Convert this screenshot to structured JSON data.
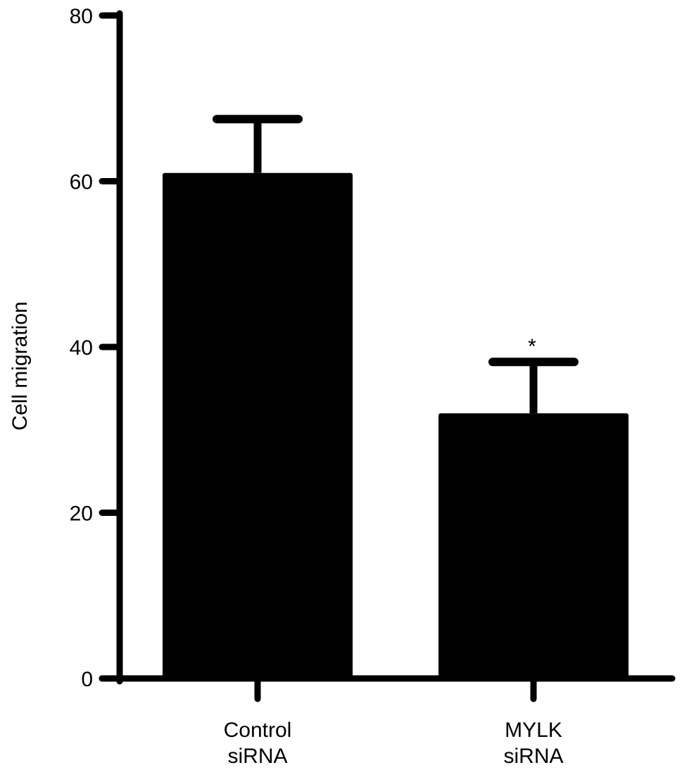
{
  "chart_data": {
    "type": "bar",
    "categories": [
      [
        "Control",
        "siRNA"
      ],
      [
        "MYLK",
        "siRNA"
      ]
    ],
    "values": [
      61,
      32
    ],
    "errors": [
      6.5,
      6.2
    ],
    "significance": [
      "",
      "*"
    ],
    "title": "",
    "xlabel": "",
    "ylabel": "Cell migration",
    "ylim": [
      0,
      80
    ],
    "yticks": [
      0,
      20,
      40,
      60,
      80
    ],
    "grid": false,
    "legend": "none",
    "colors": {
      "bar": "#000000",
      "axis": "#000000",
      "background": "#ffffff"
    }
  }
}
